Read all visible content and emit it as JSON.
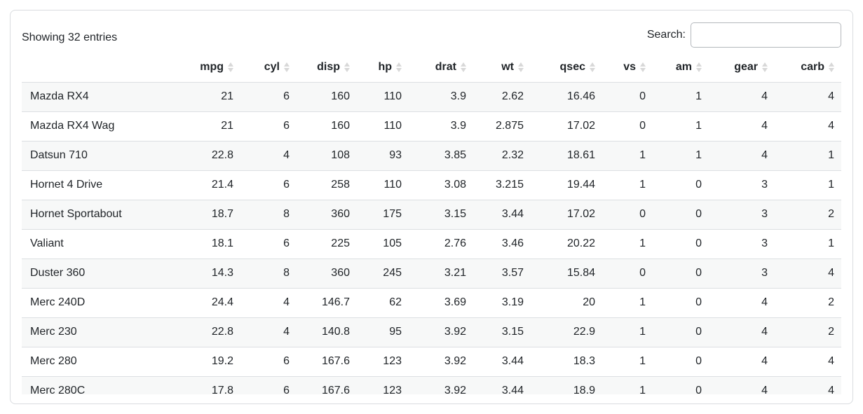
{
  "toolbar": {
    "showing_text": "Showing 32 entries",
    "search_label": "Search:",
    "search_value": ""
  },
  "table": {
    "name_column_header": "",
    "columns": [
      "mpg",
      "cyl",
      "disp",
      "hp",
      "drat",
      "wt",
      "qsec",
      "vs",
      "am",
      "gear",
      "carb"
    ],
    "rows": [
      {
        "name": "Mazda RX4",
        "values": [
          "21",
          "6",
          "160",
          "110",
          "3.9",
          "2.62",
          "16.46",
          "0",
          "1",
          "4",
          "4"
        ]
      },
      {
        "name": "Mazda RX4 Wag",
        "values": [
          "21",
          "6",
          "160",
          "110",
          "3.9",
          "2.875",
          "17.02",
          "0",
          "1",
          "4",
          "4"
        ]
      },
      {
        "name": "Datsun 710",
        "values": [
          "22.8",
          "4",
          "108",
          "93",
          "3.85",
          "2.32",
          "18.61",
          "1",
          "1",
          "4",
          "1"
        ]
      },
      {
        "name": "Hornet 4 Drive",
        "values": [
          "21.4",
          "6",
          "258",
          "110",
          "3.08",
          "3.215",
          "19.44",
          "1",
          "0",
          "3",
          "1"
        ]
      },
      {
        "name": "Hornet Sportabout",
        "values": [
          "18.7",
          "8",
          "360",
          "175",
          "3.15",
          "3.44",
          "17.02",
          "0",
          "0",
          "3",
          "2"
        ]
      },
      {
        "name": "Valiant",
        "values": [
          "18.1",
          "6",
          "225",
          "105",
          "2.76",
          "3.46",
          "20.22",
          "1",
          "0",
          "3",
          "1"
        ]
      },
      {
        "name": "Duster 360",
        "values": [
          "14.3",
          "8",
          "360",
          "245",
          "3.21",
          "3.57",
          "15.84",
          "0",
          "0",
          "3",
          "4"
        ]
      },
      {
        "name": "Merc 240D",
        "values": [
          "24.4",
          "4",
          "146.7",
          "62",
          "3.69",
          "3.19",
          "20",
          "1",
          "0",
          "4",
          "2"
        ]
      },
      {
        "name": "Merc 230",
        "values": [
          "22.8",
          "4",
          "140.8",
          "95",
          "3.92",
          "3.15",
          "22.9",
          "1",
          "0",
          "4",
          "2"
        ]
      },
      {
        "name": "Merc 280",
        "values": [
          "19.2",
          "6",
          "167.6",
          "123",
          "3.92",
          "3.44",
          "18.3",
          "1",
          "0",
          "4",
          "4"
        ]
      },
      {
        "name": "Merc 280C",
        "values": [
          "17.8",
          "6",
          "167.6",
          "123",
          "3.92",
          "3.44",
          "18.9",
          "1",
          "0",
          "4",
          "4"
        ]
      }
    ]
  },
  "icons": {
    "sort_both": "sort-both-icon"
  },
  "colors": {
    "text": "#212529",
    "stripe": "#f7f8f8",
    "row_border": "#dcdfe2",
    "card_border": "#d9dcdf",
    "input_border": "#b4b8bc",
    "sort_icon": "#d8d8d8",
    "background": "#ffffff"
  }
}
